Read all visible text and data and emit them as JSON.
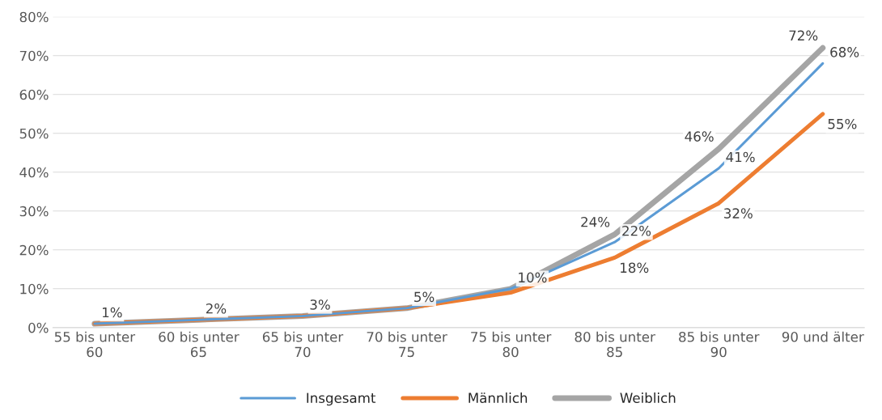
{
  "chart_data": {
    "type": "line",
    "categories": [
      "55 bis unter\n60",
      "60 bis unter\n65",
      "65 bis unter\n70",
      "70 bis unter\n75",
      "75 bis unter\n80",
      "80 bis unter\n85",
      "85 bis unter\n90",
      "90 und älter"
    ],
    "series": [
      {
        "name": "Insgesamt",
        "color": "#5b9bd5",
        "values": [
          1,
          2,
          3,
          5,
          10,
          22,
          41,
          68
        ],
        "value_labels": [
          "1%",
          "2%",
          "3%",
          "5%",
          "10%",
          "22%",
          "41%",
          "68%"
        ]
      },
      {
        "name": "Männlich",
        "color": "#ed7d31",
        "values": [
          1,
          2,
          3,
          5,
          9,
          18,
          32,
          55
        ],
        "value_labels": [
          null,
          null,
          null,
          null,
          null,
          "18%",
          "32%",
          "55%"
        ]
      },
      {
        "name": "Weiblich",
        "color": "#a5a5a5",
        "values": [
          1,
          2,
          3,
          5,
          10,
          24,
          46,
          72
        ],
        "value_labels": [
          null,
          null,
          null,
          null,
          null,
          "24%",
          "46%",
          "72%"
        ]
      }
    ],
    "ylim": [
      0,
      80
    ],
    "yticks": [
      {
        "value": 0,
        "label": "0%"
      },
      {
        "value": 10,
        "label": "10%"
      },
      {
        "value": 20,
        "label": "20%"
      },
      {
        "value": 30,
        "label": "30%"
      },
      {
        "value": 40,
        "label": "40%"
      },
      {
        "value": 50,
        "label": "50%"
      },
      {
        "value": 60,
        "label": "60%"
      },
      {
        "value": 70,
        "label": "70%"
      },
      {
        "value": 80,
        "label": "80%"
      }
    ],
    "grid": "y",
    "legend": "bottom",
    "marker": "none",
    "line_style": "solid"
  }
}
